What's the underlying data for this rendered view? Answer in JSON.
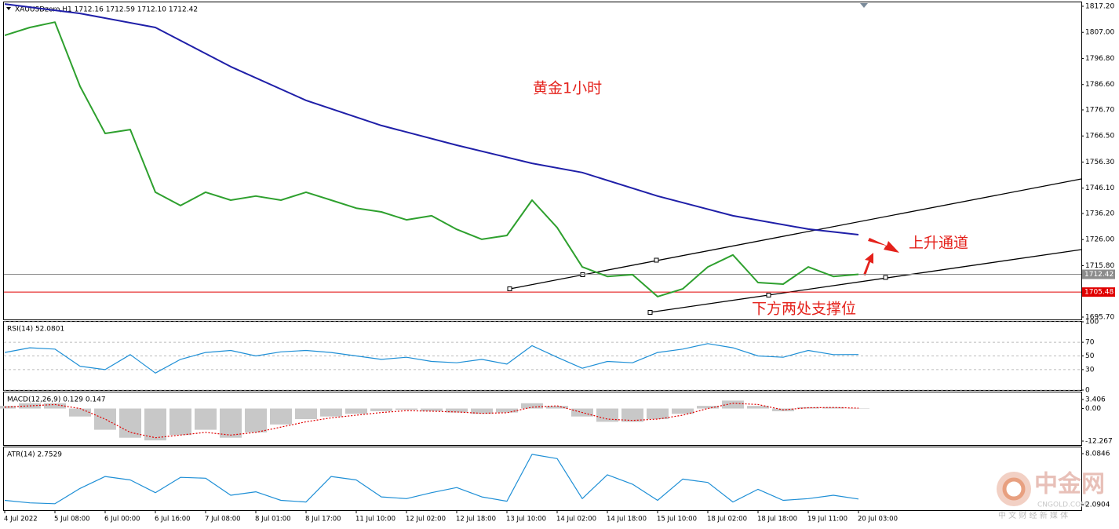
{
  "chart_data": [
    {
      "type": "line",
      "title": "XAUUSDzero,H1  1712.16 1712.59 1712.10 1712.42",
      "annotations": [
        "黄金1小时",
        "上升通道",
        "下方两处支撑位"
      ],
      "x": [
        0,
        8,
        16,
        24,
        32,
        40,
        48,
        56,
        64,
        72,
        80,
        88,
        96,
        104,
        112,
        120,
        128,
        136,
        144,
        152,
        160,
        168,
        176,
        184,
        192,
        200,
        208,
        216,
        224,
        232,
        240,
        248,
        256,
        264,
        272
      ],
      "series": [
        {
          "color": "#2ea02e",
          "values": [
            1805.8,
            1808.9,
            1811.0,
            1785.9,
            1767.5,
            1769.0,
            1744.5,
            1739.3,
            1744.5,
            1741.4,
            1743.0,
            1741.4,
            1744.5,
            1741.4,
            1738.3,
            1736.8,
            1733.7,
            1735.3,
            1730.0,
            1726.1,
            1727.6,
            1741.4,
            1730.7,
            1715.3,
            1711.6,
            1712.3,
            1703.7,
            1706.7,
            1715.3,
            1720.0,
            1709.2,
            1708.6,
            1715.3,
            1711.6,
            1712.42
          ]
        },
        {
          "color": "#1f1fa8",
          "x": [
            0,
            24,
            48,
            72,
            96,
            120,
            144,
            168,
            184,
            208,
            232,
            256,
            272
          ],
          "values": [
            1818.1,
            1814.4,
            1808.9,
            1793.6,
            1780.4,
            1770.6,
            1762.9,
            1755.8,
            1752.2,
            1743.0,
            1735.3,
            1730.1,
            1727.9
          ]
        }
      ],
      "hlines": [
        {
          "value": 1712.42,
          "color": "#8c8c8c"
        },
        {
          "value": 1705.48,
          "color": "#e00000"
        }
      ],
      "xlim": [
        -0.25,
        343
      ],
      "ylim": [
        1694.78,
        1818.73
      ],
      "yticks": [
        {
          "value": 1817.2,
          "label": "1817.20"
        },
        {
          "value": 1807,
          "label": "1807.00"
        },
        {
          "value": 1796.8,
          "label": "1796.80"
        },
        {
          "value": 1786.6,
          "label": "1786.60"
        },
        {
          "value": 1776.7,
          "label": "1776.70"
        },
        {
          "value": 1766.5,
          "label": "1766.50"
        },
        {
          "value": 1756.3,
          "label": "1756.30"
        },
        {
          "value": 1746.1,
          "label": "1746.10"
        },
        {
          "value": 1736.2,
          "label": "1736.20"
        },
        {
          "value": 1726,
          "label": "1726.00"
        },
        {
          "value": 1715.8,
          "label": "1715.80"
        },
        {
          "value": 1695.7,
          "label": "1695.70"
        }
      ],
      "grid": false
    },
    {
      "type": "line",
      "title": "RSI(14) 52.0801",
      "x": [
        0,
        8,
        16,
        24,
        32,
        40,
        48,
        56,
        64,
        72,
        80,
        88,
        96,
        104,
        112,
        120,
        128,
        136,
        144,
        152,
        160,
        168,
        176,
        184,
        192,
        200,
        208,
        216,
        224,
        232,
        240,
        248,
        256,
        264,
        272
      ],
      "series": [
        {
          "color": "#1e8fd6",
          "values": [
            55,
            62,
            60,
            35,
            30,
            52,
            25,
            45,
            55,
            58,
            50,
            56,
            58,
            55,
            50,
            45,
            48,
            42,
            40,
            45,
            38,
            65,
            48,
            32,
            42,
            40,
            55,
            60,
            68,
            62,
            50,
            48,
            58,
            52,
            52.08
          ]
        }
      ],
      "xlim": [
        -0.25,
        343
      ],
      "ylim": [
        0,
        100
      ],
      "yticks": [
        100,
        70,
        50,
        30,
        0
      ],
      "grid": true
    },
    {
      "type": "line",
      "title": "MACD(12,26,9) 0.129 0.147",
      "x": [
        0,
        8,
        16,
        24,
        32,
        40,
        48,
        56,
        64,
        72,
        80,
        88,
        96,
        104,
        112,
        120,
        128,
        136,
        144,
        152,
        160,
        168,
        176,
        184,
        192,
        200,
        208,
        216,
        224,
        232,
        240,
        248,
        256,
        264,
        272
      ],
      "series": [
        {
          "type": "bar",
          "color": "#c8c8c8",
          "values": [
            1,
            2,
            2,
            -3,
            -8,
            -11,
            -12,
            -10,
            -8,
            -11,
            -9,
            -6,
            -4,
            -3,
            -2,
            -1,
            -0.5,
            -1,
            -1.5,
            -2,
            -1.5,
            2,
            1,
            -3,
            -5,
            -5,
            -4,
            -2,
            1,
            3,
            1,
            -1,
            0.5,
            0.5,
            0.129
          ]
        },
        {
          "type": "dotted",
          "color": "#e00000",
          "values": [
            0.5,
            1,
            1.5,
            0,
            -4,
            -9,
            -11,
            -10,
            -9,
            -10,
            -9,
            -7,
            -5,
            -3.5,
            -2.5,
            -1.5,
            -0.8,
            -1,
            -1.3,
            -1.8,
            -1.6,
            0.5,
            1,
            -1.5,
            -4,
            -4.5,
            -4,
            -2.5,
            0,
            2,
            1.5,
            -0.5,
            0.3,
            0.4,
            0.147
          ]
        }
      ],
      "xlim": [
        -0.25,
        343
      ],
      "ylim": [
        -13.75,
        6.07
      ],
      "yticks": [
        3.406,
        {
          "value": 0,
          "label": "0.00"
        },
        -12.267
      ],
      "grid": false
    },
    {
      "type": "line",
      "title": "ATR(14) 2.7529",
      "x": [
        0,
        8,
        16,
        24,
        32,
        40,
        48,
        56,
        64,
        72,
        80,
        88,
        96,
        104,
        112,
        120,
        128,
        136,
        144,
        152,
        160,
        168,
        176,
        184,
        192,
        200,
        208,
        216,
        224,
        232,
        240,
        248,
        256,
        264,
        272
      ],
      "series": [
        {
          "color": "#1e8fd6",
          "values": [
            2.6,
            2.3,
            2.2,
            4,
            5.4,
            5,
            3.5,
            5.3,
            5.2,
            3.2,
            3.6,
            2.6,
            2.4,
            5.4,
            5,
            3,
            2.8,
            3.5,
            4.1,
            3,
            2.5,
            8,
            7.5,
            2.8,
            5.6,
            4.5,
            2.6,
            5.1,
            4.7,
            2.4,
            3.9,
            2.6,
            2.8,
            3.2,
            2.75
          ]
        }
      ],
      "xlim": [
        -0.25,
        343
      ],
      "ylim": [
        1.445,
        8.823
      ],
      "yticks": [
        8.0846,
        2.0904
      ],
      "grid": false,
      "xticks": [
        {
          "value": 0,
          "label": "4 Jul 2022"
        },
        {
          "value": 16,
          "label": "5 Jul 08:00"
        },
        {
          "value": 32,
          "label": "6 Jul 00:00"
        },
        {
          "value": 48,
          "label": "6 Jul 16:00"
        },
        {
          "value": 64,
          "label": "7 Jul 08:00"
        },
        {
          "value": 80,
          "label": "8 Jul 01:00"
        },
        {
          "value": 96,
          "label": "8 Jul 17:00"
        },
        {
          "value": 112,
          "label": "11 Jul 10:00"
        },
        {
          "value": 128,
          "label": "12 Jul 02:00"
        },
        {
          "value": 144,
          "label": "12 Jul 18:00"
        },
        {
          "value": 160,
          "label": "13 Jul 10:00"
        },
        {
          "value": 176,
          "label": "14 Jul 02:00"
        },
        {
          "value": 192,
          "label": "14 Jul 18:00"
        },
        {
          "value": 208,
          "label": "15 Jul 10:00"
        },
        {
          "value": 224,
          "label": "18 Jul 02:00"
        },
        {
          "value": 240,
          "label": "18 Jul 18:00"
        },
        {
          "value": 256,
          "label": "19 Jul 11:00"
        },
        {
          "value": 272,
          "label": "20 Jul 03:00"
        }
      ]
    }
  ],
  "watermark": {
    "logo": "中金网",
    "site": "CNGOLD.COM",
    "slogan": "中 文 财 经 新 媒 体"
  }
}
